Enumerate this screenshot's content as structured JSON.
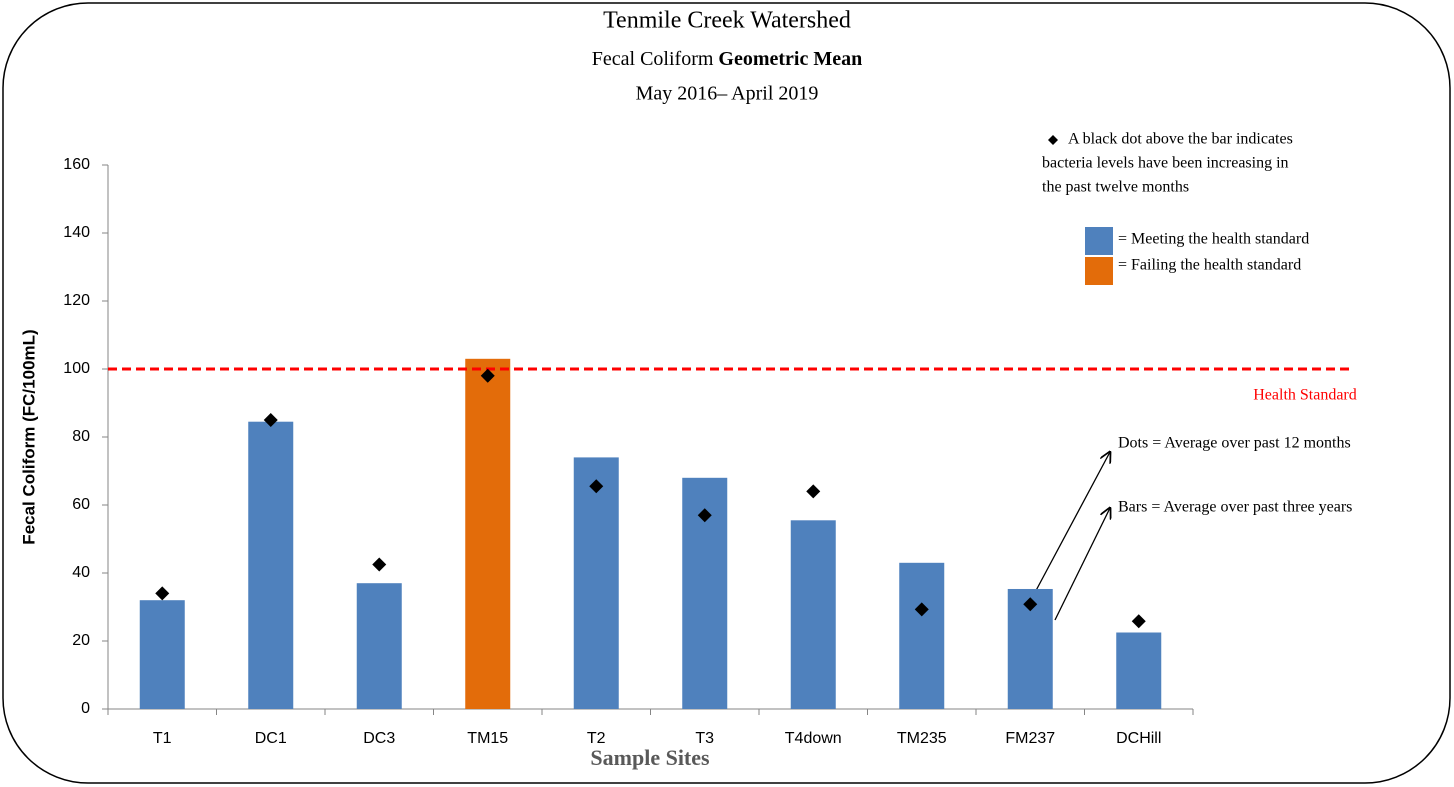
{
  "chart_data": {
    "type": "bar",
    "title": "Tenmile Creek Watershed",
    "subtitle": [
      "Fecal Coliform",
      "Geometric Mean"
    ],
    "date_range": "May 2016– April 2019",
    "x_label": "Sample Sites",
    "y_label": "Fecal Coliform (FC/100mL)",
    "categories": [
      "T1",
      "DC1",
      "DC3",
      "TM15",
      "T2",
      "T3",
      "T4down",
      "TM235",
      "FM237",
      "DCHill"
    ],
    "series": [
      {
        "values": [
          32,
          84.5,
          37,
          103,
          74,
          68,
          55.5,
          43,
          35.3,
          22.5
        ],
        "colors": [
          "#4f81bd",
          "#4f81bd",
          "#4f81bd",
          "#e36c0a",
          "#4f81bd",
          "#4f81bd",
          "#4f81bd",
          "#4f81bd",
          "#4f81bd",
          "#4f81bd"
        ]
      },
      {
        "values": [
          34,
          85,
          42.5,
          98,
          65.5,
          57,
          64,
          29.3,
          30.8,
          25.8
        ],
        "color": "#000000",
        "marker": "diamond"
      }
    ],
    "ylim": [
      0,
      160
    ],
    "yticks": [
      0,
      20,
      40,
      60,
      80,
      100,
      120,
      140,
      160
    ],
    "reference_line": {
      "value": 100,
      "label": "Health Standard",
      "color": "#ff0000"
    },
    "legend": {
      "dot_note": [
        "A black dot above the bar indicates",
        "bacteria levels have been increasing in",
        "the past twelve months"
      ],
      "items": [
        {
          "color": "#4f81bd",
          "label": "= Meeting the health standard"
        },
        {
          "color": "#e36c0a",
          "label": "= Failing the health standard"
        }
      ]
    },
    "annotations": [
      "Dots = Average over past 12 months",
      "Bars = Average over past three years"
    ]
  }
}
